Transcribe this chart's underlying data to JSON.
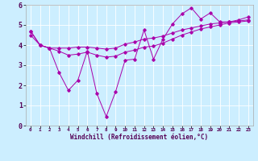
{
  "xlabel": "Windchill (Refroidissement éolien,°C)",
  "ylabel": "",
  "background_color": "#cceeff",
  "line_color": "#aa00aa",
  "xlim": [
    -0.5,
    23.5
  ],
  "ylim": [
    0,
    6
  ],
  "xticks": [
    0,
    1,
    2,
    3,
    4,
    5,
    6,
    7,
    8,
    9,
    10,
    11,
    12,
    13,
    14,
    15,
    16,
    17,
    18,
    19,
    20,
    21,
    22,
    23
  ],
  "yticks": [
    0,
    1,
    2,
    3,
    4,
    5,
    6
  ],
  "line1_x": [
    0,
    1,
    2,
    3,
    4,
    5,
    6,
    7,
    8,
    9,
    10,
    11,
    12,
    13,
    14,
    15,
    16,
    17,
    18,
    19,
    20,
    21,
    22,
    23
  ],
  "line1_y": [
    4.7,
    4.0,
    3.85,
    2.65,
    1.75,
    2.25,
    3.7,
    1.6,
    0.45,
    1.7,
    3.25,
    3.3,
    4.75,
    3.3,
    4.3,
    5.05,
    5.55,
    5.85,
    5.3,
    5.6,
    5.15,
    5.15,
    5.25,
    5.4
  ],
  "line2_x": [
    0,
    1,
    2,
    3,
    4,
    5,
    6,
    7,
    8,
    9,
    10,
    11,
    12,
    13,
    14,
    15,
    16,
    17,
    18,
    19,
    20,
    21,
    22,
    23
  ],
  "line2_y": [
    4.7,
    4.0,
    3.85,
    3.85,
    3.85,
    3.9,
    3.9,
    3.85,
    3.8,
    3.85,
    4.05,
    4.15,
    4.3,
    4.35,
    4.45,
    4.6,
    4.75,
    4.85,
    4.95,
    5.05,
    5.1,
    5.15,
    5.2,
    5.25
  ],
  "line3_x": [
    0,
    1,
    2,
    3,
    4,
    5,
    6,
    7,
    8,
    9,
    10,
    11,
    12,
    13,
    14,
    15,
    16,
    17,
    18,
    19,
    20,
    21,
    22,
    23
  ],
  "line3_y": [
    4.5,
    4.0,
    3.85,
    3.7,
    3.5,
    3.55,
    3.65,
    3.5,
    3.4,
    3.45,
    3.65,
    3.75,
    3.9,
    3.95,
    4.1,
    4.3,
    4.5,
    4.65,
    4.8,
    4.9,
    5.0,
    5.1,
    5.15,
    5.2
  ],
  "xlabel_fontsize": 5.5,
  "ytick_fontsize": 6,
  "xtick_fontsize": 4.2
}
